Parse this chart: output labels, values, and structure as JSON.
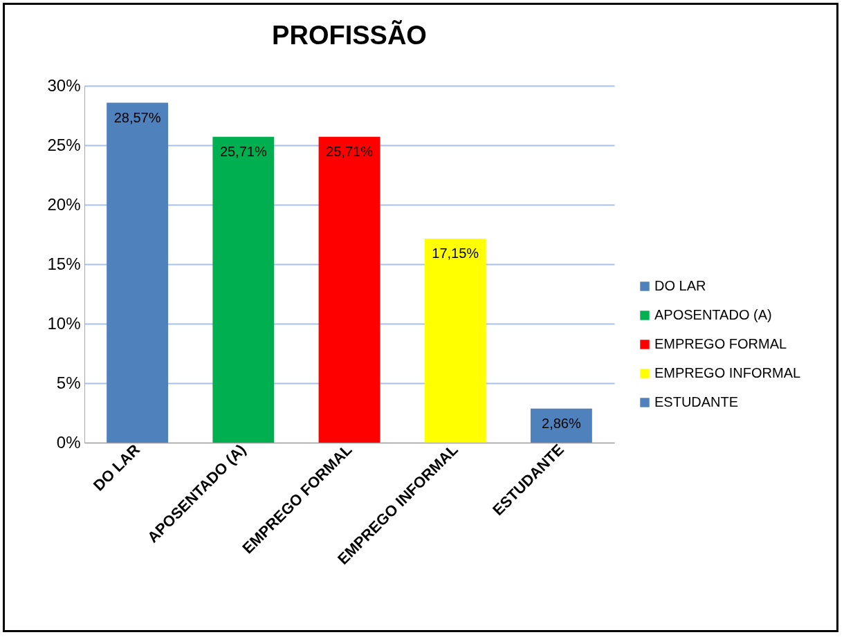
{
  "chart_data": {
    "type": "bar",
    "title": "PROFISSÃO",
    "categories": [
      "DO LAR",
      "APOSENTADO (A)",
      "EMPREGO FORMAL",
      "EMPREGO INFORMAL",
      "ESTUDANTE"
    ],
    "series": [
      {
        "name": "DO LAR",
        "color": "#4f81bd",
        "values": [
          28.57,
          null,
          null,
          null,
          null
        ],
        "value_labels": [
          "28,57%",
          null,
          null,
          null,
          null
        ]
      },
      {
        "name": "APOSENTADO (A)",
        "color": "#00b050",
        "values": [
          null,
          25.71,
          null,
          null,
          null
        ],
        "value_labels": [
          null,
          "25,71%",
          null,
          null,
          null
        ]
      },
      {
        "name": "EMPREGO FORMAL",
        "color": "#ff0000",
        "values": [
          null,
          null,
          25.71,
          null,
          null
        ],
        "value_labels": [
          null,
          null,
          "25,71%",
          null,
          null
        ]
      },
      {
        "name": "EMPREGO INFORMAL",
        "color": "#ffff00",
        "values": [
          null,
          null,
          null,
          17.15,
          null
        ],
        "value_labels": [
          null,
          null,
          null,
          "17,15%",
          null
        ]
      },
      {
        "name": "ESTUDANTE",
        "color": "#4f81bd",
        "values": [
          null,
          null,
          null,
          null,
          2.86
        ],
        "value_labels": [
          null,
          null,
          null,
          null,
          "2,86%"
        ]
      }
    ],
    "ylim": [
      0,
      30
    ],
    "yticks": [
      {
        "value": 0,
        "label": "0%"
      },
      {
        "value": 5,
        "label": "5%"
      },
      {
        "value": 10,
        "label": "10%"
      },
      {
        "value": 15,
        "label": "15%"
      },
      {
        "value": 20,
        "label": "20%"
      },
      {
        "value": 25,
        "label": "25%"
      },
      {
        "value": 30,
        "label": "30%"
      }
    ],
    "grid": "y",
    "legend": "right"
  }
}
